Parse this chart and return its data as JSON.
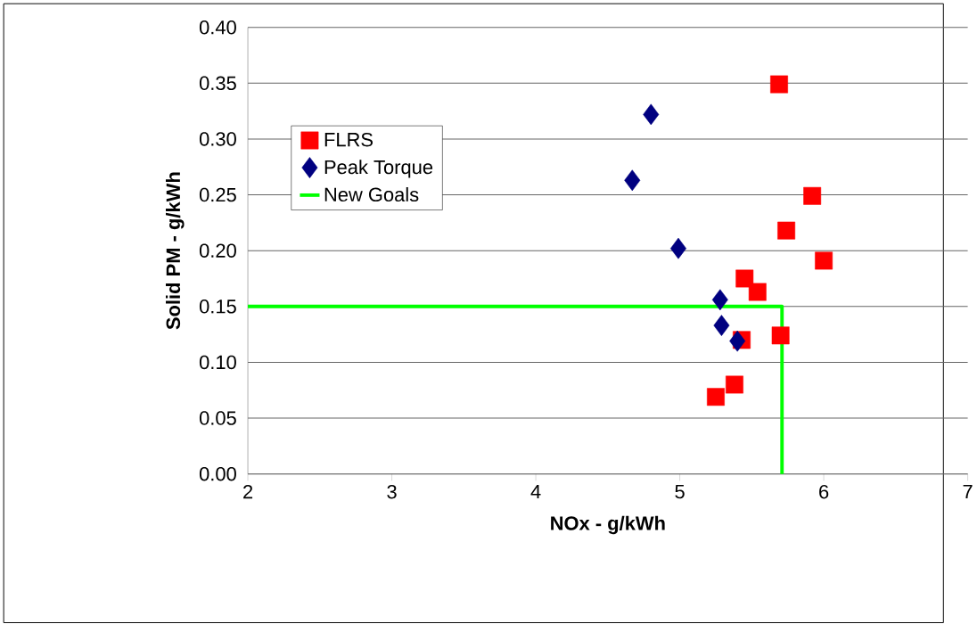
{
  "chart_data": {
    "type": "scatter",
    "xlabel": "NOx - g/kWh",
    "ylabel": "Solid PM - g/kWh",
    "xlim": [
      2,
      7
    ],
    "xticks": [
      2,
      3,
      4,
      5,
      6,
      7
    ],
    "ylim": [
      0,
      0.4
    ],
    "yticks": [
      {
        "value": 0,
        "label": "0.00"
      },
      {
        "value": 0.05,
        "label": "0.05"
      },
      {
        "value": 0.1,
        "label": "0.10"
      },
      {
        "value": 0.15,
        "label": "0.15"
      },
      {
        "value": 0.2,
        "label": "0.20"
      },
      {
        "value": 0.25,
        "label": "0.25"
      },
      {
        "value": 0.3,
        "label": "0.30"
      },
      {
        "value": 0.35,
        "label": "0.35"
      },
      {
        "value": 0.4,
        "label": "0.40"
      }
    ],
    "grid": "y",
    "legend": "top left",
    "series": [
      {
        "name": "FLRS",
        "color": "#ff0000",
        "marker": "square",
        "x": [
          5.69,
          5.92,
          5.74,
          6.0,
          5.45,
          5.54,
          5.7,
          5.43,
          5.38,
          5.25
        ],
        "values": [
          0.349,
          0.249,
          0.218,
          0.191,
          0.175,
          0.163,
          0.124,
          0.12,
          0.08,
          0.069
        ]
      },
      {
        "name": "Peak Torque",
        "color": "#000080",
        "marker": "diamond",
        "x": [
          4.8,
          4.67,
          4.99,
          5.28,
          5.29,
          5.4
        ],
        "values": [
          0.322,
          0.263,
          0.202,
          0.156,
          0.133,
          0.119
        ]
      },
      {
        "name": "New Goals",
        "type": "line",
        "color": "#00ff00",
        "marker": "none",
        "line_style": "solid",
        "x": [
          2,
          5.71,
          5.71
        ],
        "values": [
          0.15,
          0.15,
          0
        ]
      }
    ]
  }
}
